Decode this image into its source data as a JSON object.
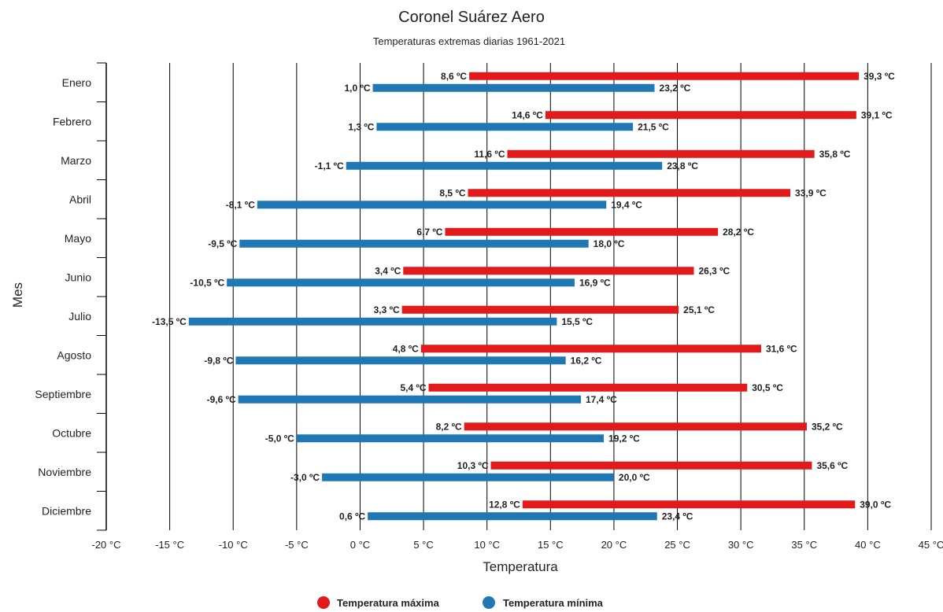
{
  "chart_data": {
    "type": "bar",
    "orientation": "horizontal-range",
    "title": "Coronel Suárez Aero",
    "subtitle": "Temperaturas extremas diarias 1961-2021",
    "xlabel": "Temperatura",
    "ylabel": "Mes",
    "xlim": [
      -20,
      45
    ],
    "xticks": [
      -20,
      -15,
      -10,
      -5,
      0,
      5,
      10,
      15,
      20,
      25,
      30,
      35,
      40,
      45
    ],
    "xtick_labels": [
      "-20 °C",
      "-15 °C",
      "-10 °C",
      "-5 °C",
      "0 °C",
      "5 °C",
      "10 °C",
      "15 °C",
      "20 °C",
      "25 °C",
      "30 °C",
      "35 °C",
      "40 °C",
      "45 °C"
    ],
    "grid": true,
    "legend_position": "bottom-center",
    "categories": [
      "Enero",
      "Febrero",
      "Marzo",
      "Abril",
      "Mayo",
      "Junio",
      "Julio",
      "Agosto",
      "Septiembre",
      "Octubre",
      "Noviembre",
      "Diciembre"
    ],
    "series": [
      {
        "name": "Temperatura máxima",
        "color": "#e31a1c",
        "low": [
          8.6,
          14.6,
          11.6,
          8.5,
          6.7,
          3.4,
          3.3,
          4.8,
          5.4,
          8.2,
          10.3,
          12.8
        ],
        "high": [
          39.3,
          39.1,
          35.8,
          33.9,
          28.2,
          26.3,
          25.1,
          31.6,
          30.5,
          35.2,
          35.6,
          39.0
        ],
        "low_labels": [
          "8,6 ºC",
          "14,6 ºC",
          "11,6 ºC",
          "8,5 ºC",
          "6,7 ºC",
          "3,4 ºC",
          "3,3 ºC",
          "4,8 ºC",
          "5,4 ºC",
          "8,2 ºC",
          "10,3 ºC",
          "12,8 ºC"
        ],
        "high_labels": [
          "39,3 ºC",
          "39,1 ºC",
          "35,8 ºC",
          "33,9 ºC",
          "28,2 ºC",
          "26,3 ºC",
          "25,1 ºC",
          "31,6 ºC",
          "30,5 ºC",
          "35,2 ºC",
          "35,6 ºC",
          "39,0 ºC"
        ]
      },
      {
        "name": "Temperatura mínima",
        "color": "#1f78b4",
        "low": [
          1.0,
          1.3,
          -1.1,
          -8.1,
          -9.5,
          -10.5,
          -13.5,
          -9.8,
          -9.6,
          -5.0,
          -3.0,
          0.6
        ],
        "high": [
          23.2,
          21.5,
          23.8,
          19.4,
          18.0,
          16.9,
          15.5,
          16.2,
          17.4,
          19.2,
          20.0,
          23.4
        ],
        "low_labels": [
          "1,0 ºC",
          "1,3 ºC",
          "-1,1 ºC",
          "-8,1 ºC",
          "-9,5 ºC",
          "-10,5 ºC",
          "-13,5 ºC",
          "-9,8 ºC",
          "-9,6 ºC",
          "-5,0 ºC",
          "-3,0 ºC",
          "0,6 ºC"
        ],
        "high_labels": [
          "23,2 ºC",
          "21,5 ºC",
          "23,8 ºC",
          "19,4 ºC",
          "18,0 ºC",
          "16,9 ºC",
          "15,5 ºC",
          "16,2 ºC",
          "17,4 ºC",
          "19,2 ºC",
          "20,0 ºC",
          "23,4 ºC"
        ]
      }
    ]
  }
}
